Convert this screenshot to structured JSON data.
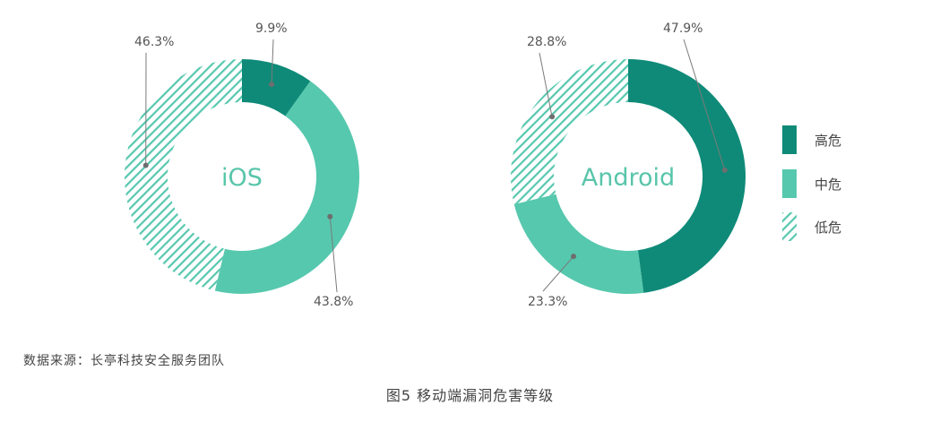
{
  "chart_data": [
    {
      "type": "pie",
      "center_label": "iOS",
      "slices": [
        {
          "category": "高危",
          "value": 9.9,
          "label": "9.9%"
        },
        {
          "category": "中危",
          "value": 43.8,
          "label": "43.8%"
        },
        {
          "category": "低危",
          "value": 46.3,
          "label": "46.3%"
        }
      ]
    },
    {
      "type": "pie",
      "center_label": "Android",
      "slices": [
        {
          "category": "高危",
          "value": 47.9,
          "label": "47.9%"
        },
        {
          "category": "中危",
          "value": 23.3,
          "label": "23.3%"
        },
        {
          "category": "低危",
          "value": 28.8,
          "label": "28.8%"
        }
      ]
    }
  ],
  "legend": [
    {
      "label": "高危",
      "color": "#0f8a78",
      "pattern": "solid"
    },
    {
      "label": "中危",
      "color": "#56c8ae",
      "pattern": "solid"
    },
    {
      "label": "低危",
      "color": "#56c8ae",
      "pattern": "hatched"
    }
  ],
  "source": "数据来源：长亭科技安全服务团队",
  "caption": "图5   移动端漏洞危害等级"
}
